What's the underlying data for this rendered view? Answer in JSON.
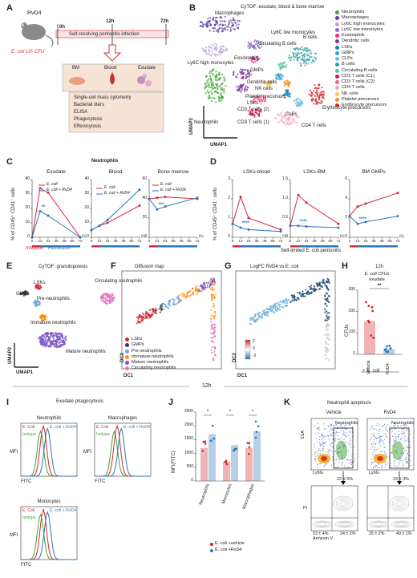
{
  "panel_letters": [
    "A",
    "B",
    "C",
    "D",
    "E",
    "F",
    "G",
    "H",
    "I",
    "J",
    "K"
  ],
  "A": {
    "mouse": "RvD4",
    "ecoli": "E. coli 10⁵ CFU",
    "t0": "0h",
    "t12": "12h",
    "t72": "72h",
    "bar": "Self-resolving peritonitis infection",
    "tissues": [
      "BM",
      "Blood",
      "Exudate"
    ],
    "assays": [
      "Single-cell mass cytometry",
      "Bacterial titers",
      "ELISA",
      "Phagocytosis",
      "Efferocytosis"
    ]
  },
  "B": {
    "title": "CyTOF: exudate, blood & bone marrow",
    "xlabel": "UMAP1",
    "ylabel": "UMAP2",
    "cluster_labels": [
      "Macrophages",
      "Ly6C low monocytes",
      "Eosinophils",
      "Ly6C high monocytes",
      "Circulating B cells",
      "GMPs",
      "B cells",
      "Dendritic cells",
      "NK cells",
      "Platelet precursors",
      "LSKs",
      "CLPs",
      "CD3 T cells (2)",
      "CD3 T cells (1)",
      "Neutrophils",
      "CD4 T cells",
      "Erythrocyte precursors"
    ],
    "legend": [
      {
        "name": "Neutrophils",
        "color": "#3fa535"
      },
      {
        "name": "Macrophages",
        "color": "#5a3e9c"
      },
      {
        "name": "Ly6C high monocytes",
        "color": "#b7a6d9"
      },
      {
        "name": "Ly6C low monocytes",
        "color": "#8e6bbf"
      },
      {
        "name": "Eosinophils",
        "color": "#e7298a"
      },
      {
        "name": "Dendritic cells",
        "color": "#7b3294"
      },
      {
        "name": "LSKs",
        "color": "#1b7bbd"
      },
      {
        "name": "GMPs",
        "color": "#3a9dd6"
      },
      {
        "name": "CLPs",
        "color": "#6bbbe5"
      },
      {
        "name": "B cells",
        "color": "#2b9fa6"
      },
      {
        "name": "Circulating B cells",
        "color": "#66c2a5"
      },
      {
        "name": "CD3 T cells (C1)",
        "color": "#c2185b"
      },
      {
        "name": "CD3 T cells (C2)",
        "color": "#f06292"
      },
      {
        "name": "CD4 T cells",
        "color": "#f4a6c1"
      },
      {
        "name": "NK cells",
        "color": "#f2c14e"
      },
      {
        "name": "Platelet precursors",
        "color": "#e8912d"
      },
      {
        "name": "Erythrocyte precursors",
        "color": "#d62728"
      }
    ]
  },
  "C": {
    "heading": "Neutrophils",
    "ylabel": "% of CD45⁺ CD41⁻ cells",
    "xunit": "(h)",
    "xticks": [
      "0",
      "12",
      "24",
      "36",
      "48",
      "60",
      "72"
    ],
    "initiation": "Initiation",
    "resolution": "Resolution",
    "legend": [
      "E. coli",
      "E. coli + RvD4"
    ],
    "colors": {
      "ecoli": "#d7263d",
      "rvd4": "#2e75b6"
    }
  },
  "D": {
    "ylabel": "% of CD45⁺ CD41⁻ cells",
    "caption": "Self-limited E. coli peritonitis",
    "xunit": "(h)"
  },
  "chart_data": [
    {
      "type": "line",
      "title": "Exudate",
      "x": [
        0,
        12,
        24,
        72
      ],
      "ylim": [
        0,
        40
      ],
      "yticks": [
        "0",
        "10",
        "20",
        "30",
        "40"
      ],
      "series": [
        {
          "name": "E. coli",
          "values": [
            0,
            34,
            31,
            0
          ]
        },
        {
          "name": "E. coli + RvD4",
          "values": [
            0,
            18,
            15,
            0
          ]
        }
      ],
      "annotation": "**"
    },
    {
      "type": "line",
      "title": "Blood",
      "x": [
        0,
        12,
        24,
        72
      ],
      "ylim": [
        0,
        40
      ],
      "yticks": [
        "0",
        "10",
        "20",
        "30",
        "40"
      ],
      "series": [
        {
          "name": "E. coli",
          "values": [
            5,
            8,
            10,
            22
          ]
        },
        {
          "name": "E. coli + RvD4",
          "values": [
            5,
            8,
            12,
            33
          ]
        }
      ],
      "annotation": ""
    },
    {
      "type": "line",
      "title": "Bone marrow",
      "x": [
        0,
        12,
        24,
        72
      ],
      "ylim": [
        0,
        60
      ],
      "yticks": [
        "0",
        "20",
        "40",
        "60"
      ],
      "series": [
        {
          "name": "E. coli",
          "values": [
            40,
            41,
            42,
            40
          ]
        },
        {
          "name": "E. coli + RvD4",
          "values": [
            40,
            29,
            32,
            41
          ]
        }
      ],
      "annotation": "***"
    },
    {
      "type": "line",
      "title": "LSKs-blood",
      "x": [
        0,
        12,
        24,
        72
      ],
      "ylim": [
        0,
        3
      ],
      "yticks": [
        "0",
        "1",
        "2",
        "3"
      ],
      "series": [
        {
          "name": "E. coli",
          "values": [
            0.7,
            2.1,
            1.0,
            0.4
          ]
        },
        {
          "name": "E. coli + RvD4",
          "values": [
            0.7,
            0.5,
            0.4,
            0.3
          ]
        }
      ],
      "annotation": "****"
    },
    {
      "type": "line",
      "title": "LSKs-BM",
      "x": [
        0,
        12,
        24,
        72
      ],
      "ylim": [
        0,
        1.5
      ],
      "yticks": [
        "0",
        "0.5",
        "1.0",
        "1.5"
      ],
      "series": [
        {
          "name": "E. coli",
          "values": [
            0.3,
            1.1,
            0.9,
            0.35
          ]
        },
        {
          "name": "E. coli + RvD4",
          "values": [
            0.3,
            0.3,
            0.28,
            0.25
          ]
        }
      ],
      "annotation": "****"
    },
    {
      "type": "line",
      "title": "BM GMPs",
      "x": [
        0,
        12,
        24,
        72
      ],
      "ylim": [
        0,
        6
      ],
      "yticks": [
        "0",
        "2",
        "4",
        "6"
      ],
      "series": [
        {
          "name": "E. coli",
          "values": [
            2.2,
            3.2,
            3.5,
            4.6
          ]
        },
        {
          "name": "E. coli + RvD4",
          "values": [
            2.2,
            1.4,
            1.6,
            2.2
          ]
        }
      ],
      "annotation": "****"
    },
    {
      "type": "bar",
      "title": "E. coli CFUs exudate",
      "subtitle": "12h",
      "categories": [
        "Vehicle",
        "RvD4"
      ],
      "values": [
        155,
        25
      ],
      "ylim": [
        0,
        300
      ],
      "yticks": [
        "0",
        "100",
        "200",
        "300"
      ],
      "ylabel": "CFUs",
      "annotation": "**"
    },
    {
      "type": "bar",
      "title": "MFI(FITC)",
      "categories": [
        "Neutrophils",
        "Monocytes",
        "Macrophages"
      ],
      "series": [
        {
          "name": "E. coli +vehicle",
          "values": [
            1200,
            700,
            1200
          ]
        },
        {
          "name": "E. coli +RvD4",
          "values": [
            1700,
            1300,
            1800
          ]
        }
      ],
      "ylim": [
        0,
        2500
      ],
      "yticks": [
        "0",
        "500",
        "1000",
        "1500",
        "2000",
        "2500"
      ],
      "annotations": [
        "*",
        "*",
        "*"
      ]
    }
  ],
  "E": {
    "title": "CyTOF: granulopoiesis",
    "xlabel": "UMAP1",
    "ylabel": "UMAP2",
    "labels": [
      "GMPs",
      "LSKs",
      "Pre-neutrophils",
      "Immature neutrophils",
      "Circulating neutrophils",
      "Mature neutrophils"
    ]
  },
  "F": {
    "title": "Diffusion map",
    "xlabel": "DC1",
    "ylabel": "DC2",
    "legend": [
      {
        "name": "LSKs",
        "color": "#d62728"
      },
      {
        "name": "GMPs",
        "color": "#3a3a3a"
      },
      {
        "name": "Pre neutrophils",
        "color": "#6fa8dc"
      },
      {
        "name": "Immature neutrophils",
        "color": "#ff8c00"
      },
      {
        "name": "Mature neutrophils",
        "color": "#7d56c2"
      },
      {
        "name": "Circulating neutrophils",
        "color": "#e377c2"
      }
    ]
  },
  "G": {
    "title": "LogFC RvD4 vs E. coli",
    "xlabel": "DC1",
    "ylabel": "DC2",
    "scale": [
      "2",
      "0",
      "-2"
    ]
  },
  "H": {
    "time": "12h",
    "xlabel_group": "+ E. coli"
  },
  "I": {
    "mid": "12h",
    "title": "Exudate phagocytosis",
    "plots": [
      {
        "name": "Neutrophils"
      },
      {
        "name": "Macrophages"
      },
      {
        "name": "Monocytes"
      }
    ],
    "legend": [
      "E. Coli",
      "Isotype",
      "E. coli + RvD4"
    ],
    "xlabel": "FITC",
    "ylabel": "MFI"
  },
  "K": {
    "title": "Neutrophil apoptosis",
    "groups": [
      {
        "name": "Vehicle",
        "gate": "Neutrophils",
        "pct": "22 ± 5%",
        "q3": "53 ± 4%",
        "q4": "24 ± 2%"
      },
      {
        "name": "RvD4",
        "gate": "Neutrophils",
        "pct": "23 ± 3%",
        "q3": "35 ± 2%",
        "q4": "40 ± 1%"
      }
    ],
    "ssa": "SSA",
    "ly6g": "Ly6G",
    "pi": "PI",
    "annexin": "Annexin V"
  }
}
